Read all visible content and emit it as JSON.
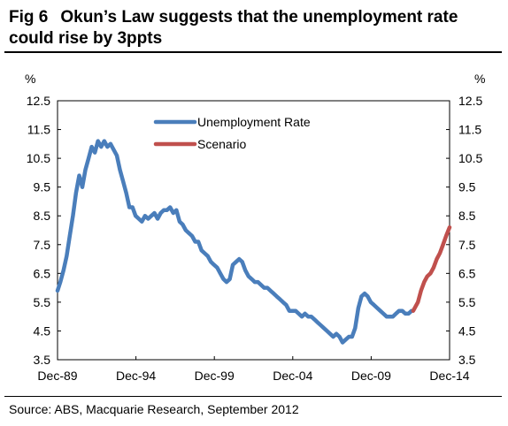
{
  "figure": {
    "number": "Fig 6",
    "title": "Okun’s Law suggests that the unemployment rate could rise by 3ppts",
    "source": "Source: ABS, Macquarie Research, September 2012"
  },
  "chart_data": {
    "type": "line",
    "yunit_left": "%",
    "yunit_right": "%",
    "ylim": [
      3.5,
      12.5
    ],
    "yticks": [
      "12.5",
      "11.5",
      "10.5",
      "9.5",
      "8.5",
      "7.5",
      "6.5",
      "5.5",
      "4.5",
      "3.5"
    ],
    "xlim": [
      1989.92,
      2014.92
    ],
    "xticks": [
      {
        "label": "Dec-89",
        "x": 1989.92
      },
      {
        "label": "Dec-94",
        "x": 1994.92
      },
      {
        "label": "Dec-99",
        "x": 1999.92
      },
      {
        "label": "Dec-04",
        "x": 2004.92
      },
      {
        "label": "Dec-09",
        "x": 2009.92
      },
      {
        "label": "Dec-14",
        "x": 2014.92
      }
    ],
    "legend_position": "top-center",
    "colors": {
      "unemployment": "#4a7ebb",
      "scenario": "#c0504d"
    },
    "series": [
      {
        "name": "Unemployment Rate",
        "color": "#4a7ebb",
        "points": [
          [
            1989.92,
            5.9
          ],
          [
            1990.1,
            6.2
          ],
          [
            1990.3,
            6.6
          ],
          [
            1990.5,
            7.1
          ],
          [
            1990.7,
            7.8
          ],
          [
            1990.9,
            8.5
          ],
          [
            1991.1,
            9.3
          ],
          [
            1991.3,
            9.9
          ],
          [
            1991.5,
            9.5
          ],
          [
            1991.7,
            10.1
          ],
          [
            1991.9,
            10.5
          ],
          [
            1992.1,
            10.9
          ],
          [
            1992.3,
            10.7
          ],
          [
            1992.5,
            11.1
          ],
          [
            1992.7,
            10.9
          ],
          [
            1992.9,
            11.1
          ],
          [
            1993.1,
            10.9
          ],
          [
            1993.3,
            11.0
          ],
          [
            1993.5,
            10.8
          ],
          [
            1993.7,
            10.6
          ],
          [
            1993.9,
            10.1
          ],
          [
            1994.1,
            9.7
          ],
          [
            1994.3,
            9.3
          ],
          [
            1994.5,
            8.8
          ],
          [
            1994.7,
            8.8
          ],
          [
            1994.9,
            8.5
          ],
          [
            1995.1,
            8.4
          ],
          [
            1995.3,
            8.3
          ],
          [
            1995.5,
            8.5
          ],
          [
            1995.7,
            8.4
          ],
          [
            1995.9,
            8.5
          ],
          [
            1996.1,
            8.6
          ],
          [
            1996.3,
            8.4
          ],
          [
            1996.5,
            8.6
          ],
          [
            1996.7,
            8.7
          ],
          [
            1996.9,
            8.7
          ],
          [
            1997.1,
            8.8
          ],
          [
            1997.3,
            8.6
          ],
          [
            1997.5,
            8.7
          ],
          [
            1997.7,
            8.3
          ],
          [
            1997.9,
            8.2
          ],
          [
            1998.1,
            8.0
          ],
          [
            1998.3,
            7.9
          ],
          [
            1998.5,
            7.8
          ],
          [
            1998.7,
            7.6
          ],
          [
            1998.9,
            7.6
          ],
          [
            1999.1,
            7.3
          ],
          [
            1999.3,
            7.2
          ],
          [
            1999.5,
            7.1
          ],
          [
            1999.7,
            6.9
          ],
          [
            1999.9,
            6.8
          ],
          [
            2000.1,
            6.7
          ],
          [
            2000.3,
            6.5
          ],
          [
            2000.5,
            6.3
          ],
          [
            2000.7,
            6.2
          ],
          [
            2000.9,
            6.3
          ],
          [
            2001.1,
            6.8
          ],
          [
            2001.3,
            6.9
          ],
          [
            2001.5,
            7.0
          ],
          [
            2001.7,
            6.9
          ],
          [
            2001.9,
            6.6
          ],
          [
            2002.1,
            6.4
          ],
          [
            2002.3,
            6.3
          ],
          [
            2002.5,
            6.2
          ],
          [
            2002.7,
            6.2
          ],
          [
            2002.9,
            6.1
          ],
          [
            2003.1,
            6.0
          ],
          [
            2003.3,
            6.0
          ],
          [
            2003.5,
            5.9
          ],
          [
            2003.7,
            5.8
          ],
          [
            2003.9,
            5.7
          ],
          [
            2004.1,
            5.6
          ],
          [
            2004.3,
            5.5
          ],
          [
            2004.5,
            5.4
          ],
          [
            2004.7,
            5.2
          ],
          [
            2004.9,
            5.2
          ],
          [
            2005.1,
            5.2
          ],
          [
            2005.3,
            5.1
          ],
          [
            2005.5,
            5.0
          ],
          [
            2005.7,
            5.1
          ],
          [
            2005.9,
            5.0
          ],
          [
            2006.1,
            5.0
          ],
          [
            2006.3,
            4.9
          ],
          [
            2006.5,
            4.8
          ],
          [
            2006.7,
            4.7
          ],
          [
            2006.9,
            4.6
          ],
          [
            2007.1,
            4.5
          ],
          [
            2007.3,
            4.4
          ],
          [
            2007.5,
            4.3
          ],
          [
            2007.7,
            4.4
          ],
          [
            2007.9,
            4.3
          ],
          [
            2008.1,
            4.1
          ],
          [
            2008.3,
            4.2
          ],
          [
            2008.5,
            4.3
          ],
          [
            2008.7,
            4.3
          ],
          [
            2008.9,
            4.6
          ],
          [
            2009.1,
            5.3
          ],
          [
            2009.3,
            5.7
          ],
          [
            2009.5,
            5.8
          ],
          [
            2009.7,
            5.7
          ],
          [
            2009.9,
            5.5
          ],
          [
            2010.1,
            5.4
          ],
          [
            2010.3,
            5.3
          ],
          [
            2010.5,
            5.2
          ],
          [
            2010.7,
            5.1
          ],
          [
            2010.9,
            5.0
          ],
          [
            2011.1,
            5.0
          ],
          [
            2011.3,
            5.0
          ],
          [
            2011.5,
            5.1
          ],
          [
            2011.7,
            5.2
          ],
          [
            2011.9,
            5.2
          ],
          [
            2012.1,
            5.1
          ],
          [
            2012.3,
            5.1
          ],
          [
            2012.5,
            5.2
          ]
        ]
      },
      {
        "name": "Scenario",
        "color": "#c0504d",
        "points": [
          [
            2012.6,
            5.2
          ],
          [
            2012.9,
            5.5
          ],
          [
            2013.1,
            5.9
          ],
          [
            2013.3,
            6.2
          ],
          [
            2013.5,
            6.4
          ],
          [
            2013.7,
            6.5
          ],
          [
            2013.9,
            6.7
          ],
          [
            2014.1,
            7.0
          ],
          [
            2014.3,
            7.2
          ],
          [
            2014.5,
            7.5
          ],
          [
            2014.7,
            7.8
          ],
          [
            2014.92,
            8.1
          ]
        ]
      }
    ]
  }
}
